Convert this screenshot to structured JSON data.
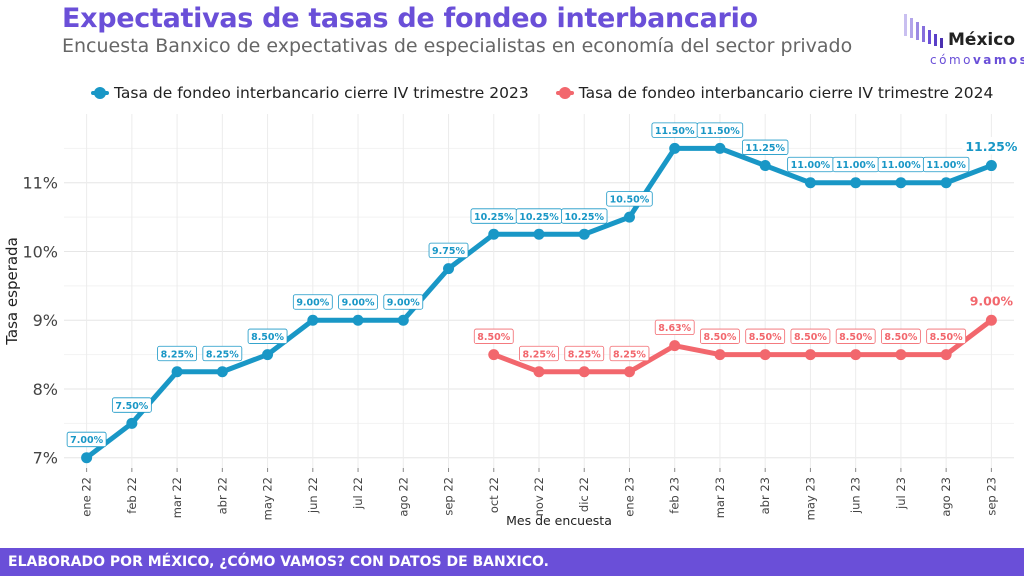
{
  "header": {
    "title": "Expectativas de tasas de fondeo interbancario",
    "subtitle": "Encuesta Banxico de expectativas de especialistas en economía del sector privado"
  },
  "logo": {
    "line1": "México",
    "line2a": "cómo",
    "line2b": "vamos"
  },
  "footer": {
    "text": "ELABORADO POR MÉXICO, ¿CÓMO VAMOS? CON DATOS DE BANXICO."
  },
  "colors": {
    "series_2023": "#1997c6",
    "series_2024": "#f2676d",
    "accent": "#6a4fd8"
  },
  "chart_data": {
    "type": "line",
    "categories": [
      "ene 22",
      "feb 22",
      "mar 22",
      "abr 22",
      "may 22",
      "jun 22",
      "jul 22",
      "ago 22",
      "sep 22",
      "oct 22",
      "nov 22",
      "dic 22",
      "ene 23",
      "feb 23",
      "mar 23",
      "abr 23",
      "may 23",
      "jun 23",
      "jul 23",
      "ago 23",
      "sep 23"
    ],
    "xlabel": "Mes de encuesta",
    "ylabel": "Tasa esperada",
    "ylim": [
      6.85,
      12.0
    ],
    "yticks": [
      7,
      8,
      9,
      10,
      11
    ],
    "ytick_labels": [
      "7%",
      "8%",
      "9%",
      "10%",
      "11%"
    ],
    "grid": true,
    "legend_position": "top",
    "series": [
      {
        "name": "Tasa de fondeo interbancario cierre IV trimestre 2023",
        "values": [
          7.0,
          7.5,
          8.25,
          8.25,
          8.5,
          9.0,
          9.0,
          9.0,
          9.75,
          10.25,
          10.25,
          10.25,
          10.5,
          11.5,
          11.5,
          11.25,
          11.0,
          11.0,
          11.0,
          11.0,
          11.25
        ],
        "labels": [
          "7.00%",
          "7.50%",
          "8.25%",
          "8.25%",
          "8.50%",
          "9.00%",
          "9.00%",
          "9.00%",
          "9.75%",
          "10.25%",
          "10.25%",
          "10.25%",
          "10.50%",
          "11.50%",
          "11.50%",
          "11.25%",
          "11.00%",
          "11.00%",
          "11.00%",
          "11.00%",
          "11.25%"
        ]
      },
      {
        "name": "Tasa de fondeo interbancario cierre IV trimestre 2024",
        "values": [
          null,
          null,
          null,
          null,
          null,
          null,
          null,
          null,
          null,
          8.5,
          8.25,
          8.25,
          8.25,
          8.63,
          8.5,
          8.5,
          8.5,
          8.5,
          8.5,
          8.5,
          9.0
        ],
        "labels": [
          null,
          null,
          null,
          null,
          null,
          null,
          null,
          null,
          null,
          "8.50%",
          "8.25%",
          "8.25%",
          "8.25%",
          "8.63%",
          "8.50%",
          "8.50%",
          "8.50%",
          "8.50%",
          "8.50%",
          "8.50%",
          "9.00%"
        ]
      }
    ]
  }
}
